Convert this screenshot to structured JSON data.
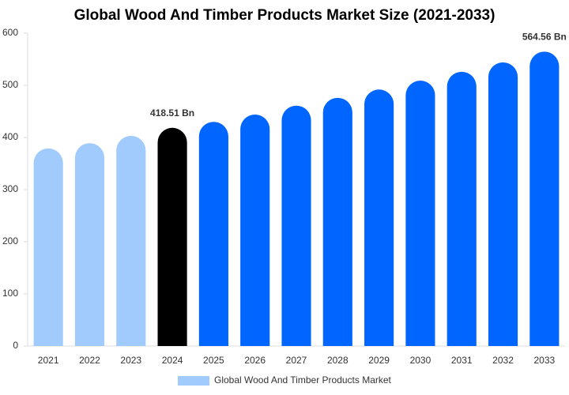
{
  "chart_data": {
    "type": "bar",
    "title": "Global Wood And Timber Products Market Size (2021-2033)",
    "categories": [
      "2021",
      "2022",
      "2023",
      "2024",
      "2025",
      "2026",
      "2027",
      "2028",
      "2029",
      "2030",
      "2031",
      "2032",
      "2033"
    ],
    "series": [
      {
        "name": "Global Wood And Timber Products Market",
        "color": "#a0cbfc",
        "values": [
          379,
          389,
          403,
          418.51,
          430,
          444,
          461,
          476,
          492,
          509,
          526,
          544,
          564.56
        ],
        "bar_colors": [
          "#a0cbfc",
          "#a0cbfc",
          "#a0cbfc",
          "#000000",
          "#0066ff",
          "#0066ff",
          "#0066ff",
          "#0066ff",
          "#0066ff",
          "#0066ff",
          "#0066ff",
          "#0066ff",
          "#0066ff"
        ],
        "value_labels": [
          null,
          null,
          null,
          "418.51 Bn",
          null,
          null,
          null,
          null,
          null,
          null,
          null,
          null,
          "564.56 Bn"
        ]
      }
    ],
    "ylim": [
      0,
      600
    ],
    "yticks": [
      0,
      100,
      200,
      300,
      400,
      500,
      600
    ],
    "grid": false
  }
}
